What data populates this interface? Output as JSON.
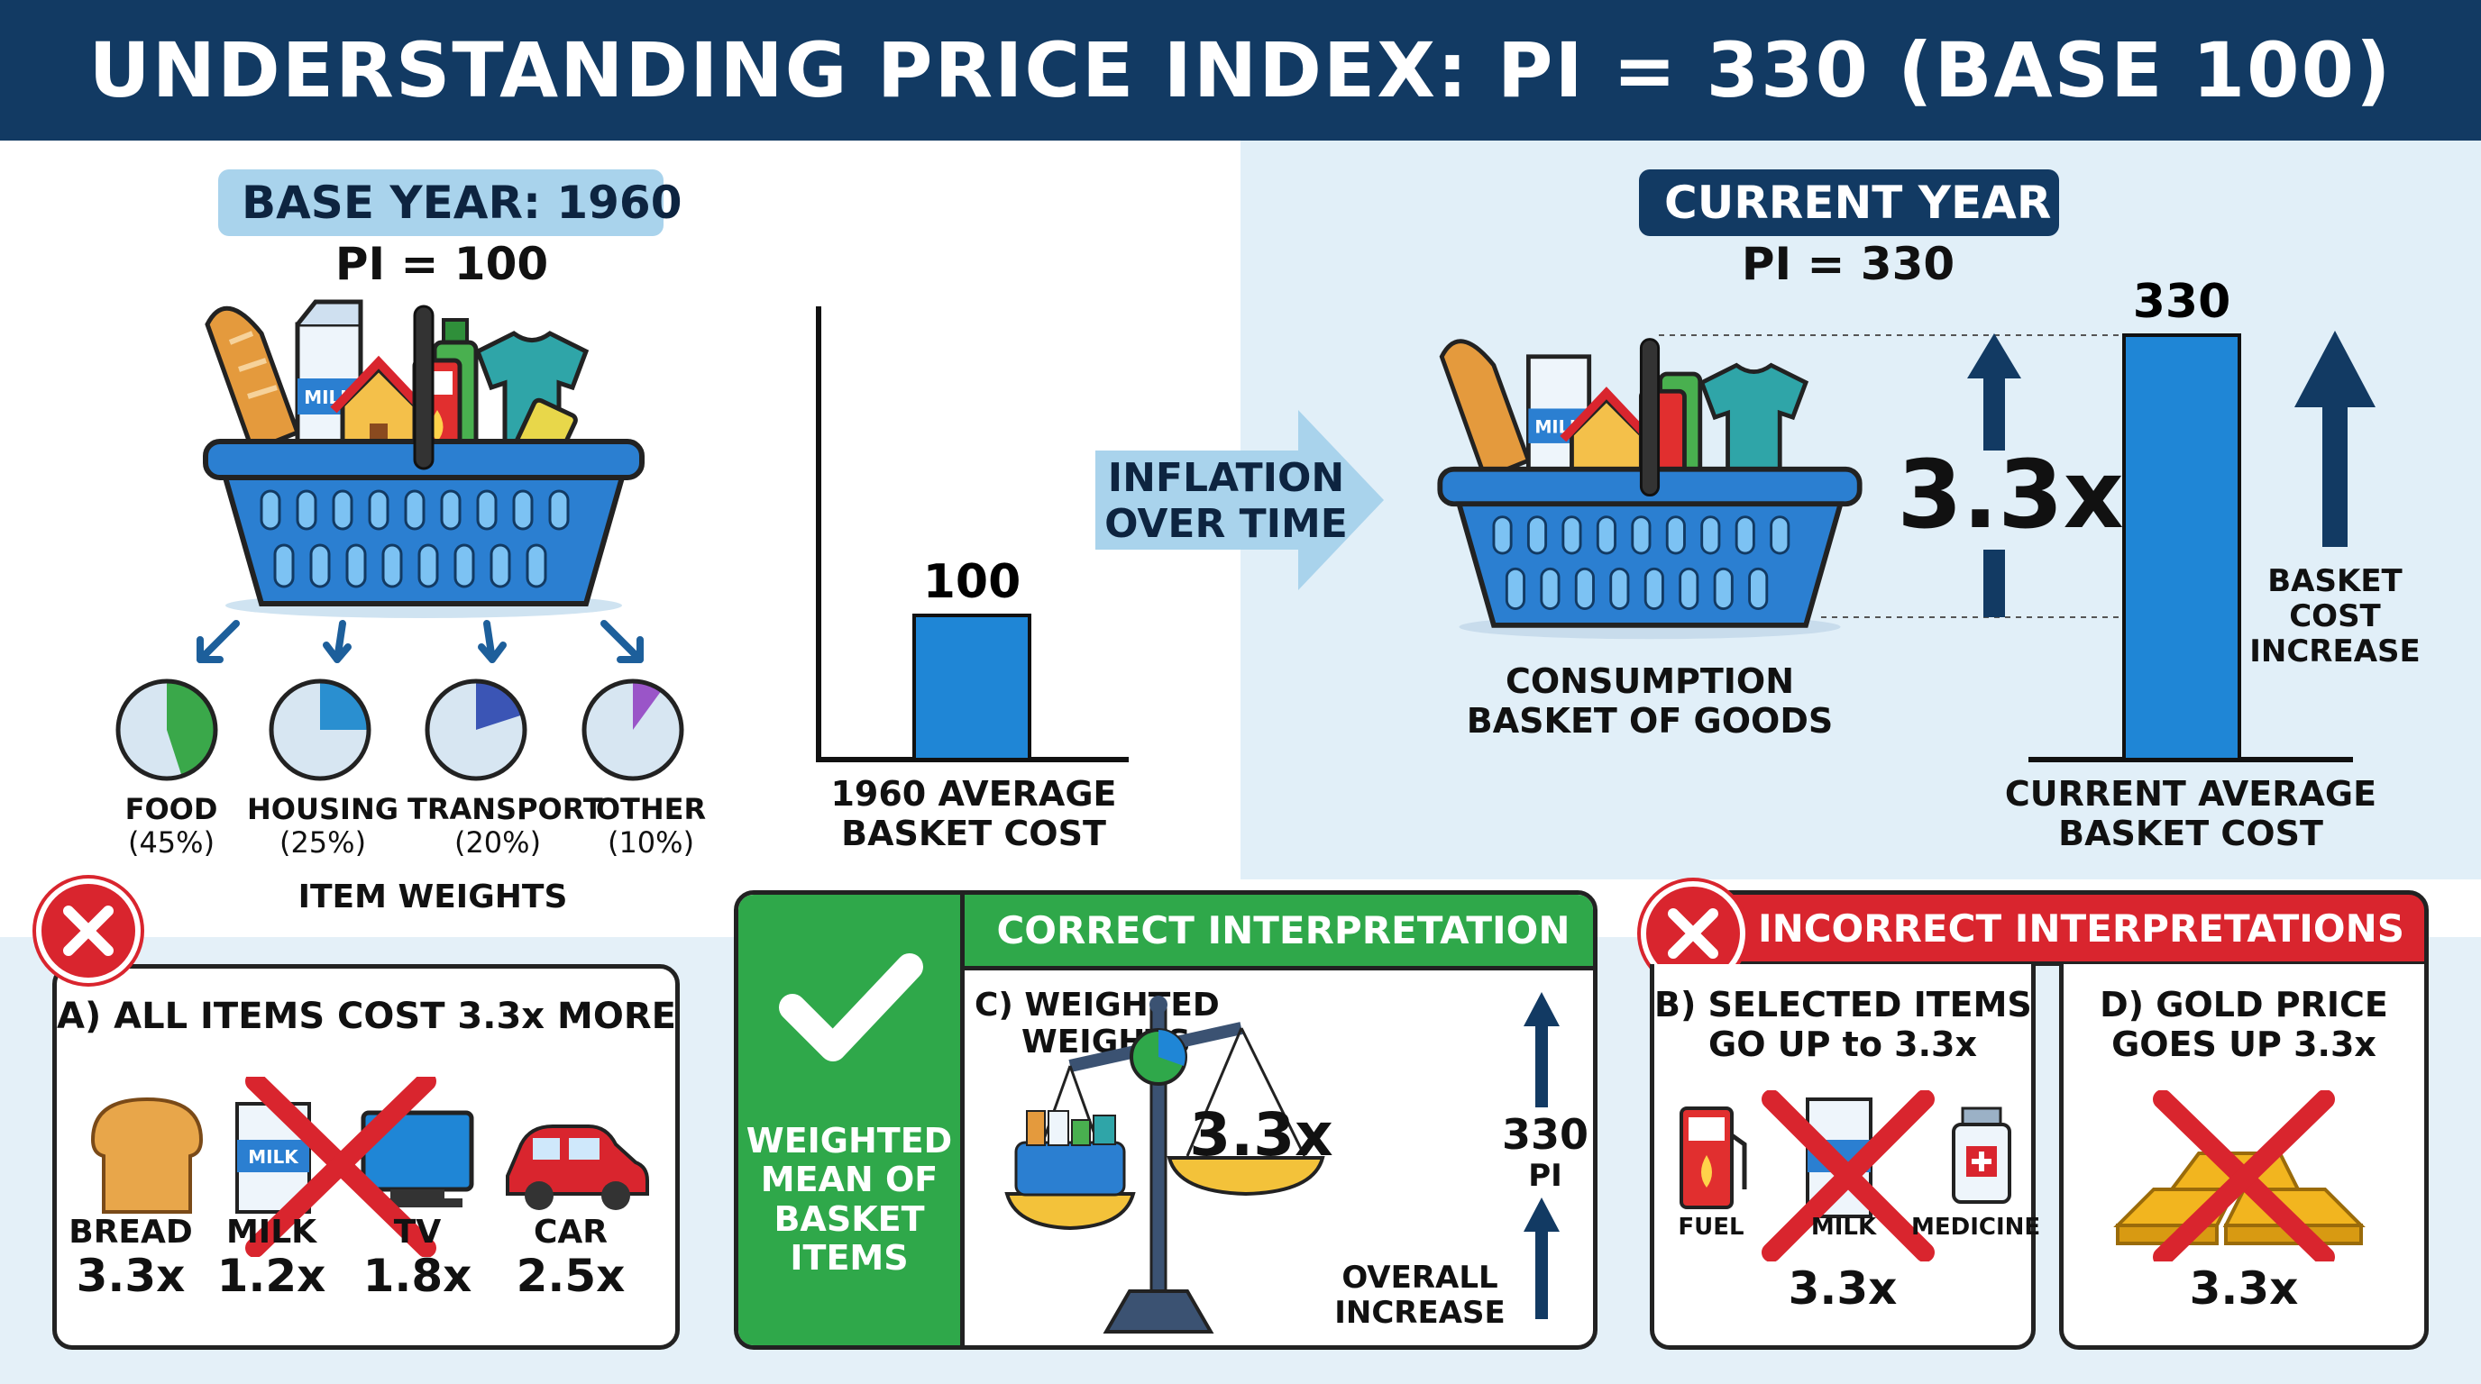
{
  "header": {
    "title": "UNDERSTANDING PRICE INDEX: PI = 330 (BASE 100)"
  },
  "base": {
    "label": "BASE YEAR: 1960",
    "pi": "PI = 100",
    "weights_title": "ITEM WEIGHTS",
    "weights": [
      {
        "name": "FOOD",
        "pct": "(45%)",
        "value": 45,
        "color": "#3aa84a"
      },
      {
        "name": "HOUSING",
        "pct": "(25%)",
        "value": 25,
        "color": "#2a8fd0"
      },
      {
        "name": "TRANSPORT",
        "pct": "(20%)",
        "value": 20,
        "color": "#3b55b5"
      },
      {
        "name": "OTHER",
        "pct": "(10%)",
        "value": 10,
        "color": "#9a55c8"
      }
    ],
    "milk_label": "MILK"
  },
  "base_chart": {
    "value_label": "100",
    "caption_line1": "1960 AVERAGE",
    "caption_line2": "BASKET COST"
  },
  "inflation": {
    "line1": "INFLATION",
    "line2": "OVER TIME"
  },
  "current": {
    "label": "CURRENT YEAR",
    "pi": "PI = 330",
    "multiplier": "3.3x",
    "basket_caption_line1": "CONSUMPTION",
    "basket_caption_line2": "BASKET OF GOODS",
    "bar_value_label": "330",
    "increase_line1": "BASKET",
    "increase_line2": "COST",
    "increase_line3": "INCREASE",
    "caption_line1": "CURRENT AVERAGE",
    "caption_line2": "BASKET COST"
  },
  "panel_a": {
    "title": "A) ALL ITEMS COST 3.3x MORE",
    "items": [
      {
        "name": "BREAD",
        "mult": "3.3x"
      },
      {
        "name": "MILK",
        "mult": "1.2x"
      },
      {
        "name": "TV",
        "mult": "1.8x"
      },
      {
        "name": "CAR",
        "mult": "2.5x"
      }
    ]
  },
  "correct": {
    "header": "CORRECT INTERPRETATION",
    "side_line1": "WEIGHTED",
    "side_line2": "MEAN OF",
    "side_line3": "BASKET",
    "side_line4": "ITEMS",
    "c_line1": "C) WEIGHTED",
    "c_line2": "WEIGHTS",
    "scale_value": "3.3x",
    "pi_value": "330",
    "pi_label": "PI",
    "overall_line1": "OVERALL",
    "overall_line2": "INCREASE"
  },
  "incorrect": {
    "header": "INCORRECT INTERPRETATIONS",
    "b_line1": "B) SELECTED ITEMS",
    "b_line2": "GO UP to 3.3x",
    "b_items": [
      "FUEL",
      "MILK",
      "MEDICINE"
    ],
    "b_value": "3.3x",
    "d_line1": "D) GOLD PRICE",
    "d_line2": "GOES UP 3.3x",
    "d_value": "3.3x"
  },
  "colors": {
    "navy": "#123a63",
    "bar_blue": "#1f86d6",
    "green": "#2fa84a",
    "red": "#d9252e",
    "basket_blue": "#2b7fd1"
  }
}
